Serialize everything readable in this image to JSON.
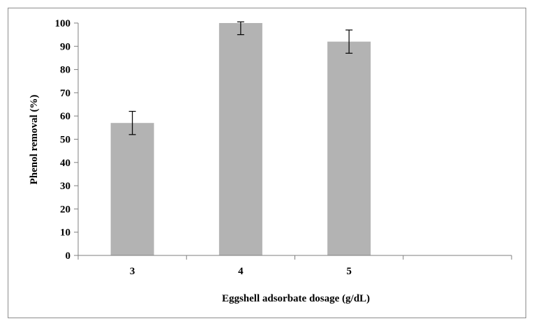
{
  "chart_data": {
    "type": "bar",
    "categories": [
      "3",
      "4",
      "5",
      ""
    ],
    "values": [
      57,
      100,
      92,
      null
    ],
    "errors": [
      5,
      5,
      5,
      null
    ],
    "title": "",
    "xlabel": "Eggshell adsorbate dosage (g/dL)",
    "ylabel": "Phenol removal (%)",
    "ylim": [
      0,
      100
    ],
    "yticks": [
      0,
      10,
      20,
      30,
      40,
      50,
      60,
      70,
      80,
      90,
      100
    ],
    "grid": false,
    "legend": "none",
    "bar_color": "#b3b3b3",
    "axis_color": "#7f7f7f"
  }
}
